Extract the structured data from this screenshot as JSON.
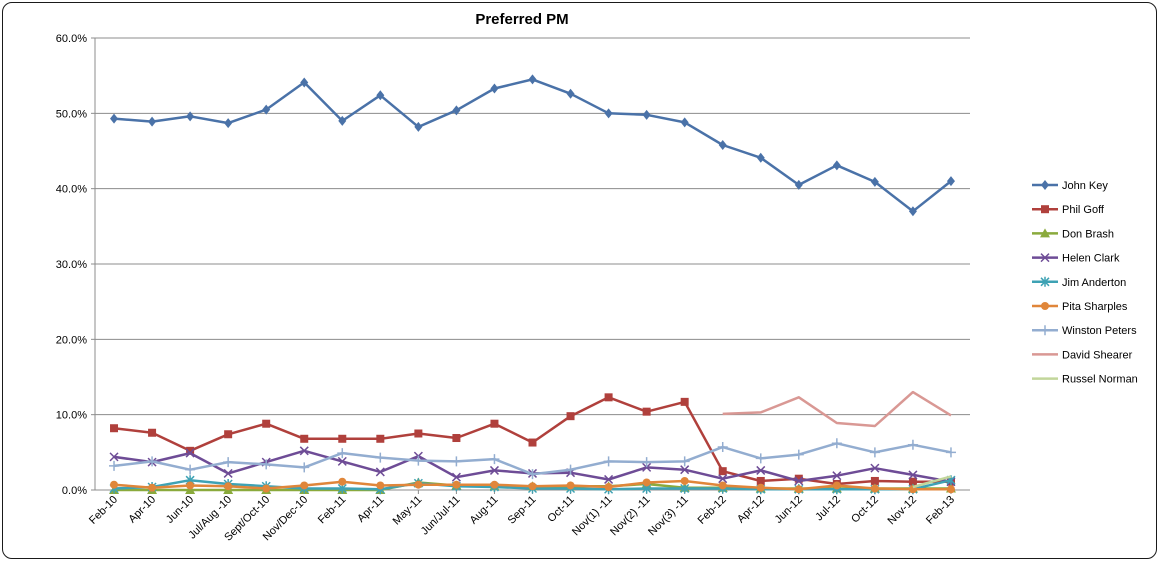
{
  "chart_data": {
    "type": "line",
    "title": "Preferred PM",
    "xlabel": "",
    "ylabel": "",
    "ylim": [
      0,
      60
    ],
    "y_ticks": [
      "0.0%",
      "10.0%",
      "20.0%",
      "30.0%",
      "40.0%",
      "50.0%",
      "60.0%"
    ],
    "grid": "horizontal",
    "legend_position": "right",
    "categories": [
      "Feb-10",
      "Apr-10",
      "Jun-10",
      "Jul/Aug -10",
      "Sept/Oct-10",
      "Nov/Dec-10",
      "Feb-11",
      "Apr-11",
      "May-11",
      "Jun/Jul-11",
      "Aug-11",
      "Sep-11",
      "Oct-11",
      "Nov(1) -11",
      "Nov(2) -11",
      "Nov(3) -11",
      "Feb-12",
      "Apr-12",
      "Jun-12",
      "Jul-12",
      "Oct-12",
      "Nov-12",
      "Feb-13"
    ],
    "series": [
      {
        "name": "John Key",
        "color": "#4a72a8",
        "marker": "diamond",
        "values": [
          49.3,
          48.9,
          49.6,
          48.7,
          50.5,
          54.1,
          49.0,
          52.4,
          48.2,
          50.4,
          53.3,
          54.5,
          52.6,
          50.0,
          49.8,
          48.8,
          45.8,
          44.1,
          40.5,
          43.1,
          40.9,
          37.0,
          41.0
        ]
      },
      {
        "name": "Phil Goff",
        "color": "#b0403c",
        "marker": "square",
        "values": [
          8.2,
          7.6,
          5.2,
          7.4,
          8.8,
          6.8,
          6.8,
          6.8,
          7.5,
          6.9,
          8.8,
          6.3,
          9.8,
          12.3,
          10.4,
          11.7,
          2.5,
          1.2,
          1.5,
          0.8,
          1.2,
          1.1,
          1.1
        ]
      },
      {
        "name": "Don Brash",
        "color": "#8aaa3c",
        "marker": "triangle",
        "values": [
          0.0,
          0.0,
          0.0,
          0.0,
          0.0,
          0.0,
          0.0,
          0.0,
          1.0,
          0.6,
          0.5,
          0.5,
          0.5,
          0.5,
          0.8,
          0.3,
          0.3,
          0.2,
          0.2,
          0.2,
          0.2,
          0.2,
          0.2
        ]
      },
      {
        "name": "Helen Clark",
        "color": "#6e4c96",
        "marker": "x",
        "values": [
          4.4,
          3.7,
          4.9,
          2.2,
          3.7,
          5.2,
          3.8,
          2.4,
          4.5,
          1.7,
          2.6,
          2.2,
          2.3,
          1.4,
          3.0,
          2.7,
          1.5,
          2.6,
          1.2,
          1.9,
          2.9,
          2.0,
          1.1
        ]
      },
      {
        "name": "Jim Anderton",
        "color": "#3ea2b4",
        "marker": "asterisk",
        "values": [
          0.2,
          0.4,
          1.3,
          0.8,
          0.5,
          0.2,
          0.2,
          0.1,
          0.9,
          0.5,
          0.4,
          0.2,
          0.2,
          0.1,
          0.2,
          0.2,
          0.2,
          0.1,
          0.1,
          0.1,
          0.1,
          0.1,
          1.3
        ]
      },
      {
        "name": "Pita Sharples",
        "color": "#e0863a",
        "marker": "circle",
        "values": [
          0.7,
          0.3,
          0.6,
          0.5,
          0.2,
          0.6,
          1.1,
          0.6,
          0.7,
          0.7,
          0.7,
          0.5,
          0.6,
          0.4,
          1.0,
          1.2,
          0.6,
          0.3,
          0.1,
          0.6,
          0.2,
          0.1,
          0.1
        ]
      },
      {
        "name": "Winston Peters",
        "color": "#93add0",
        "marker": "plus",
        "values": [
          3.2,
          3.8,
          2.7,
          3.7,
          3.4,
          3.0,
          4.9,
          4.3,
          3.9,
          3.8,
          4.1,
          2.1,
          2.7,
          3.8,
          3.7,
          3.8,
          5.7,
          4.2,
          4.7,
          6.2,
          5.0,
          6.0,
          5.0
        ]
      },
      {
        "name": "David Shearer",
        "color": "#d99894",
        "marker": "none",
        "values": [
          null,
          null,
          null,
          null,
          null,
          null,
          null,
          null,
          null,
          null,
          null,
          null,
          null,
          null,
          null,
          null,
          10.1,
          10.3,
          12.3,
          8.9,
          8.5,
          13.0,
          9.9
        ]
      },
      {
        "name": "Russel Norman",
        "color": "#c2d69b",
        "marker": "none",
        "values": [
          null,
          null,
          null,
          null,
          null,
          null,
          null,
          null,
          null,
          null,
          null,
          null,
          null,
          null,
          null,
          null,
          null,
          null,
          null,
          null,
          null,
          0.4,
          1.8
        ]
      }
    ]
  }
}
